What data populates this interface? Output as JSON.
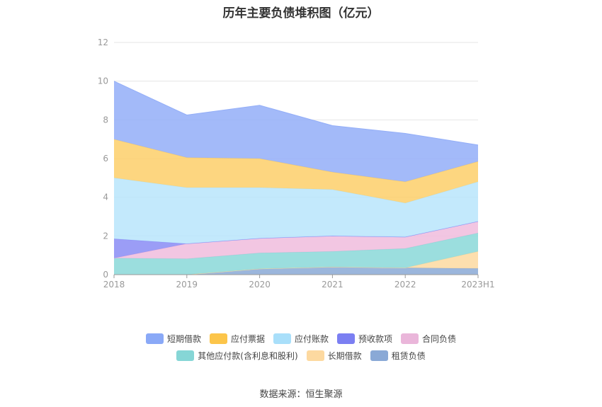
{
  "chart_data": {
    "type": "area",
    "stacked": true,
    "title": "历年主要负债堆积图（亿元）",
    "categories": [
      "2018",
      "2019",
      "2020",
      "2021",
      "2022",
      "2023H1"
    ],
    "ylim": [
      0,
      12
    ],
    "yticks": [
      0,
      2,
      4,
      6,
      8,
      10,
      12
    ],
    "grid": true,
    "legend_position": "bottom",
    "series": [
      {
        "name": "租赁负债",
        "color": "#8aa9d6",
        "values": [
          0,
          0,
          0.3,
          0.4,
          0.35,
          0.32
        ]
      },
      {
        "name": "长期借款",
        "color": "#fdd9a0",
        "values": [
          0,
          0,
          0,
          0,
          0,
          0.88
        ]
      },
      {
        "name": "其他应付款(含利息和股利)",
        "color": "#8ad8d8",
        "values": [
          0.85,
          0.82,
          0.82,
          0.8,
          1.0,
          0.95
        ]
      },
      {
        "name": "合同负债",
        "color": "#f0bcdd",
        "values": [
          0,
          0.78,
          0.76,
          0.8,
          0.6,
          0.6
        ]
      },
      {
        "name": "预收款项",
        "color": "#8a8cf5",
        "values": [
          1.0,
          0,
          0,
          0,
          0,
          0
        ]
      },
      {
        "name": "应付账款",
        "color": "#b8e5fb",
        "values": [
          3.15,
          2.9,
          2.62,
          2.4,
          1.75,
          2.05
        ]
      },
      {
        "name": "应付票据",
        "color": "#fdcf6a",
        "values": [
          2.0,
          1.55,
          1.5,
          0.9,
          1.1,
          1.05
        ]
      },
      {
        "name": "短期借款",
        "color": "#93aef8",
        "values": [
          3.0,
          2.2,
          2.75,
          2.4,
          2.5,
          0.85
        ]
      }
    ]
  },
  "legend_rows": [
    [
      {
        "label": "短期借款",
        "color": "#8aa9f7"
      },
      {
        "label": "应付票据",
        "color": "#fcc54a"
      },
      {
        "label": "应付账款",
        "color": "#a9dffa"
      },
      {
        "label": "预收款项",
        "color": "#7b7ff2"
      },
      {
        "label": "合同负债",
        "color": "#eab6da"
      }
    ],
    [
      {
        "label": "其他应付款(含利息和股利)",
        "color": "#86d6d6"
      },
      {
        "label": "长期借款",
        "color": "#fdd9a0"
      },
      {
        "label": "租赁负债",
        "color": "#8aa9d6"
      }
    ]
  ],
  "source": "数据来源：恒生聚源"
}
